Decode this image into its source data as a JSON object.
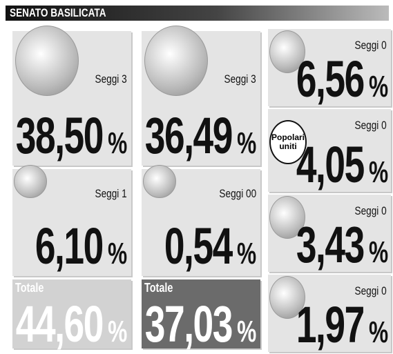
{
  "header": {
    "title": "SENATO BASILICATA"
  },
  "columns": [
    {
      "parties": [
        {
          "seats_label": "Seggi",
          "seats": "3",
          "percent": "38,50",
          "unit": "%"
        },
        {
          "seats_label": "Seggi",
          "seats": "1",
          "percent": "6,10",
          "unit": "%"
        }
      ],
      "total": {
        "label": "Totale",
        "percent": "44,60",
        "unit": "%"
      }
    },
    {
      "parties": [
        {
          "seats_label": "Seggi",
          "seats": "3",
          "percent": "36,49",
          "unit": "%"
        },
        {
          "seats_label": "Seggi",
          "seats": "00",
          "percent": "0,54",
          "unit": "%"
        }
      ],
      "total": {
        "label": "Totale",
        "percent": "37,03",
        "unit": "%"
      }
    }
  ],
  "right": {
    "parties": [
      {
        "seats_label": "Seggi",
        "seats": "0",
        "percent": "6,56",
        "unit": "%"
      },
      {
        "name": "Popolari uniti",
        "seats_label": "Seggi",
        "seats": "0",
        "percent": "4,05",
        "unit": "%"
      },
      {
        "seats_label": "Seggi",
        "seats": "0",
        "percent": "3,43",
        "unit": "%"
      },
      {
        "seats_label": "Seggi",
        "seats": "0",
        "percent": "1,97",
        "unit": "%"
      }
    ]
  }
}
